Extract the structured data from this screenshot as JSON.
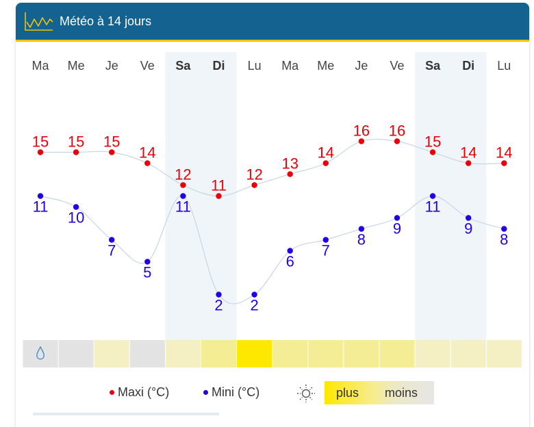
{
  "header": {
    "title": "Météo à 14 jours"
  },
  "chart_data": {
    "type": "line",
    "days": [
      "Ma",
      "Me",
      "Je",
      "Ve",
      "Sa",
      "Di",
      "Lu",
      "Ma",
      "Me",
      "Je",
      "Ve",
      "Sa",
      "Di",
      "Lu"
    ],
    "weekend": [
      false,
      false,
      false,
      false,
      true,
      true,
      false,
      false,
      false,
      false,
      false,
      true,
      true,
      false
    ],
    "series": [
      {
        "name": "Maxi (°C)",
        "color": "#e8000b",
        "values": [
          15,
          15,
          15,
          14,
          12,
          11,
          12,
          13,
          14,
          16,
          16,
          15,
          14,
          14
        ]
      },
      {
        "name": "Mini (°C)",
        "color": "#2200e6",
        "values": [
          11,
          10,
          7,
          5,
          11,
          2,
          2,
          6,
          7,
          8,
          9,
          11,
          9,
          8
        ]
      }
    ],
    "ylim": [
      2,
      16
    ],
    "sunshine": {
      "icons": [
        "drop-icon",
        "",
        "",
        "",
        "",
        "",
        "",
        "",
        "",
        "",
        "",
        "",
        "",
        ""
      ],
      "colors": [
        "#e3e3e3",
        "#e3e3e3",
        "#f4f0c4",
        "#e3e3e3",
        "#f4f0c4",
        "#f5ec96",
        "#ffe800",
        "#f5ec96",
        "#f5ec96",
        "#f5ec96",
        "#f5ec96",
        "#f4f0c4",
        "#f4f0c4",
        "#f4f0c4"
      ]
    }
  },
  "legend": {
    "maxi_label": "Maxi (°C)",
    "mini_label": "Mini (°C)",
    "sun_icon": "sun-icon",
    "plus_label": "plus",
    "moins_label": "moins"
  }
}
